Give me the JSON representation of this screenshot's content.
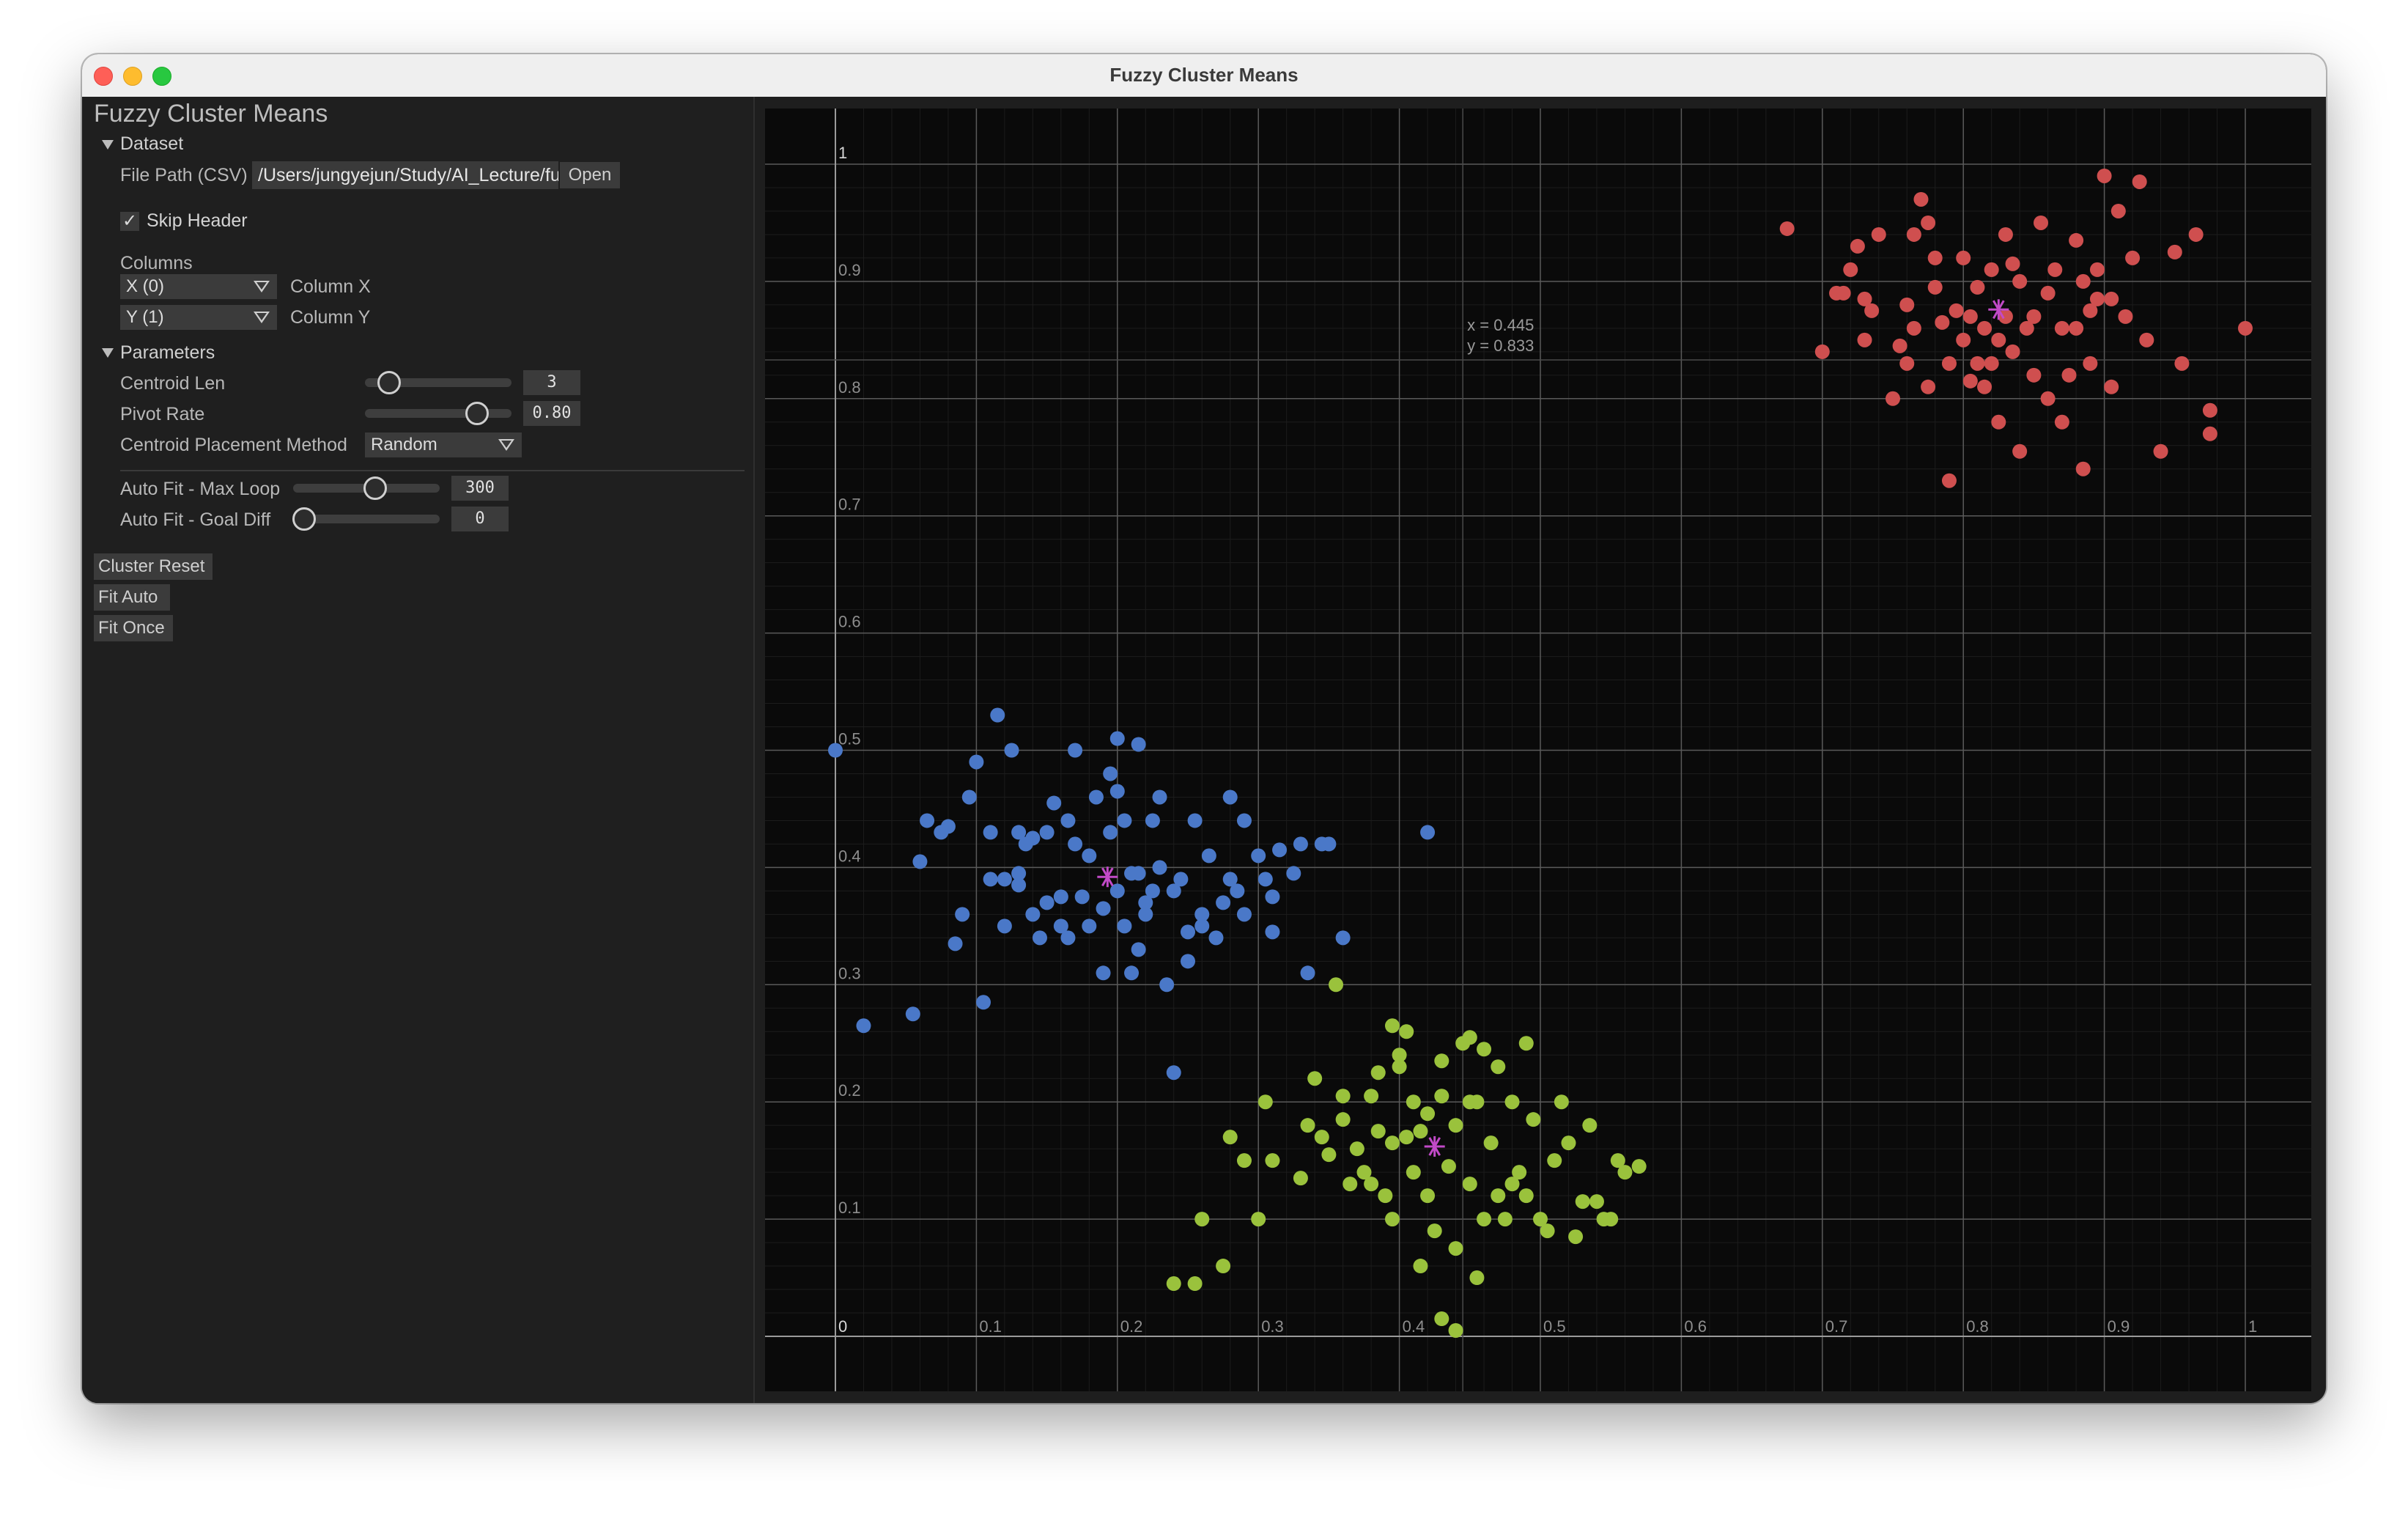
{
  "window": {
    "title": "Fuzzy Cluster Means"
  },
  "panel": {
    "title": "Fuzzy Cluster Means",
    "dataset": {
      "header": "Dataset",
      "file_label": "File Path (CSV)",
      "file_value": "/Users/jungyejun/Study/AI_Lecture/fuzzy-cluster-m",
      "open_label": "Open",
      "skip_header_label": "Skip Header",
      "skip_header_checked": "✓",
      "columns_label": "Columns",
      "col_x_value": "X (0)",
      "col_x_label": "Column X",
      "col_y_value": "Y (1)",
      "col_y_label": "Column Y"
    },
    "parameters": {
      "header": "Parameters",
      "centroid_len_label": "Centroid Len",
      "centroid_len_value": "3",
      "pivot_rate_label": "Pivot Rate",
      "pivot_rate_value": "0.80",
      "placement_label": "Centroid Placement Method",
      "placement_value": "Random",
      "max_loop_label": "Auto Fit - Max Loop",
      "max_loop_value": "300",
      "goal_diff_label": "Auto Fit - Goal Diff",
      "goal_diff_value": "0"
    },
    "buttons": {
      "cluster_reset": "Cluster Reset",
      "fit_auto": "Fit Auto",
      "fit_once": "Fit Once"
    }
  },
  "chart_data": {
    "type": "scatter",
    "xlim": [
      0,
      1
    ],
    "ylim": [
      0,
      1
    ],
    "x_ticks": [
      "0",
      "0.1",
      "0.2",
      "0.3",
      "0.4",
      "0.5",
      "0.6",
      "0.7",
      "0.8",
      "0.9",
      "1"
    ],
    "y_ticks": [
      "0.1",
      "0.2",
      "0.3",
      "0.4",
      "0.5",
      "0.6",
      "0.7",
      "0.8",
      "0.9",
      "1"
    ],
    "grid": true,
    "cursor_readout": {
      "x_text": "x = 0.445",
      "y_text": "y = 0.833"
    },
    "series": [
      {
        "color": "#cf4f4f",
        "centroid": [
          0.825,
          0.876
        ],
        "points": [
          [
            0.675,
            0.945
          ],
          [
            0.7,
            0.84
          ],
          [
            0.71,
            0.89
          ],
          [
            0.715,
            0.89
          ],
          [
            0.72,
            0.91
          ],
          [
            0.725,
            0.93
          ],
          [
            0.73,
            0.85
          ],
          [
            0.73,
            0.885
          ],
          [
            0.735,
            0.875
          ],
          [
            0.74,
            0.94
          ],
          [
            0.75,
            0.8
          ],
          [
            0.755,
            0.845
          ],
          [
            0.76,
            0.88
          ],
          [
            0.76,
            0.83
          ],
          [
            0.765,
            0.94
          ],
          [
            0.765,
            0.86
          ],
          [
            0.77,
            0.97
          ],
          [
            0.775,
            0.95
          ],
          [
            0.775,
            0.81
          ],
          [
            0.78,
            0.92
          ],
          [
            0.78,
            0.895
          ],
          [
            0.785,
            0.865
          ],
          [
            0.79,
            0.83
          ],
          [
            0.79,
            0.73
          ],
          [
            0.795,
            0.875
          ],
          [
            0.8,
            0.92
          ],
          [
            0.8,
            0.85
          ],
          [
            0.805,
            0.815
          ],
          [
            0.805,
            0.87
          ],
          [
            0.81,
            0.895
          ],
          [
            0.81,
            0.83
          ],
          [
            0.815,
            0.81
          ],
          [
            0.815,
            0.86
          ],
          [
            0.82,
            0.91
          ],
          [
            0.82,
            0.83
          ],
          [
            0.825,
            0.85
          ],
          [
            0.825,
            0.78
          ],
          [
            0.83,
            0.87
          ],
          [
            0.83,
            0.94
          ],
          [
            0.835,
            0.84
          ],
          [
            0.835,
            0.915
          ],
          [
            0.84,
            0.9
          ],
          [
            0.84,
            0.755
          ],
          [
            0.845,
            0.86
          ],
          [
            0.85,
            0.82
          ],
          [
            0.85,
            0.87
          ],
          [
            0.855,
            0.95
          ],
          [
            0.86,
            0.8
          ],
          [
            0.86,
            0.89
          ],
          [
            0.865,
            0.91
          ],
          [
            0.87,
            0.86
          ],
          [
            0.87,
            0.78
          ],
          [
            0.875,
            0.82
          ],
          [
            0.88,
            0.86
          ],
          [
            0.88,
            0.935
          ],
          [
            0.885,
            0.9
          ],
          [
            0.885,
            0.74
          ],
          [
            0.89,
            0.83
          ],
          [
            0.89,
            0.875
          ],
          [
            0.895,
            0.91
          ],
          [
            0.9,
            0.99
          ],
          [
            0.905,
            0.81
          ],
          [
            0.905,
            0.885
          ],
          [
            0.91,
            0.96
          ],
          [
            0.915,
            0.87
          ],
          [
            0.92,
            0.92
          ],
          [
            0.925,
            0.985
          ],
          [
            0.93,
            0.85
          ],
          [
            0.94,
            0.755
          ],
          [
            0.95,
            0.925
          ],
          [
            0.955,
            0.83
          ],
          [
            0.965,
            0.94
          ],
          [
            0.975,
            0.79
          ],
          [
            0.975,
            0.77
          ],
          [
            1.0,
            0.86
          ],
          [
            0.895,
            0.885
          ]
        ]
      },
      {
        "color": "#4a78c8",
        "centroid": [
          0.193,
          0.392
        ],
        "points": [
          [
            0.0,
            0.5
          ],
          [
            0.02,
            0.265
          ],
          [
            0.055,
            0.275
          ],
          [
            0.06,
            0.405
          ],
          [
            0.065,
            0.44
          ],
          [
            0.075,
            0.43
          ],
          [
            0.08,
            0.435
          ],
          [
            0.085,
            0.335
          ],
          [
            0.09,
            0.36
          ],
          [
            0.095,
            0.46
          ],
          [
            0.1,
            0.49
          ],
          [
            0.105,
            0.285
          ],
          [
            0.11,
            0.43
          ],
          [
            0.11,
            0.39
          ],
          [
            0.115,
            0.53
          ],
          [
            0.12,
            0.35
          ],
          [
            0.12,
            0.39
          ],
          [
            0.125,
            0.5
          ],
          [
            0.13,
            0.385
          ],
          [
            0.13,
            0.43
          ],
          [
            0.135,
            0.42
          ],
          [
            0.14,
            0.36
          ],
          [
            0.14,
            0.425
          ],
          [
            0.145,
            0.34
          ],
          [
            0.15,
            0.37
          ],
          [
            0.15,
            0.43
          ],
          [
            0.155,
            0.455
          ],
          [
            0.16,
            0.35
          ],
          [
            0.16,
            0.375
          ],
          [
            0.165,
            0.34
          ],
          [
            0.165,
            0.44
          ],
          [
            0.17,
            0.42
          ],
          [
            0.17,
            0.5
          ],
          [
            0.175,
            0.375
          ],
          [
            0.18,
            0.41
          ],
          [
            0.18,
            0.35
          ],
          [
            0.185,
            0.46
          ],
          [
            0.19,
            0.365
          ],
          [
            0.19,
            0.31
          ],
          [
            0.195,
            0.48
          ],
          [
            0.195,
            0.43
          ],
          [
            0.2,
            0.38
          ],
          [
            0.2,
            0.465
          ],
          [
            0.205,
            0.35
          ],
          [
            0.205,
            0.44
          ],
          [
            0.21,
            0.395
          ],
          [
            0.21,
            0.31
          ],
          [
            0.215,
            0.33
          ],
          [
            0.215,
            0.505
          ],
          [
            0.22,
            0.37
          ],
          [
            0.22,
            0.36
          ],
          [
            0.225,
            0.38
          ],
          [
            0.225,
            0.44
          ],
          [
            0.23,
            0.46
          ],
          [
            0.23,
            0.4
          ],
          [
            0.235,
            0.3
          ],
          [
            0.24,
            0.38
          ],
          [
            0.245,
            0.39
          ],
          [
            0.25,
            0.345
          ],
          [
            0.25,
            0.32
          ],
          [
            0.255,
            0.44
          ],
          [
            0.26,
            0.35
          ],
          [
            0.26,
            0.36
          ],
          [
            0.265,
            0.41
          ],
          [
            0.27,
            0.34
          ],
          [
            0.275,
            0.37
          ],
          [
            0.28,
            0.46
          ],
          [
            0.28,
            0.39
          ],
          [
            0.285,
            0.38
          ],
          [
            0.29,
            0.36
          ],
          [
            0.29,
            0.44
          ],
          [
            0.3,
            0.41
          ],
          [
            0.305,
            0.39
          ],
          [
            0.31,
            0.345
          ],
          [
            0.31,
            0.375
          ],
          [
            0.315,
            0.415
          ],
          [
            0.325,
            0.395
          ],
          [
            0.33,
            0.42
          ],
          [
            0.335,
            0.31
          ],
          [
            0.345,
            0.42
          ],
          [
            0.35,
            0.42
          ],
          [
            0.36,
            0.34
          ],
          [
            0.2,
            0.51
          ],
          [
            0.24,
            0.225
          ],
          [
            0.42,
            0.43
          ],
          [
            0.13,
            0.395
          ],
          [
            0.215,
            0.395
          ]
        ]
      },
      {
        "color": "#9ac23c",
        "centroid": [
          0.425,
          0.162
        ],
        "points": [
          [
            0.24,
            0.045
          ],
          [
            0.255,
            0.045
          ],
          [
            0.26,
            0.1
          ],
          [
            0.275,
            0.06
          ],
          [
            0.28,
            0.17
          ],
          [
            0.29,
            0.15
          ],
          [
            0.3,
            0.1
          ],
          [
            0.305,
            0.2
          ],
          [
            0.31,
            0.15
          ],
          [
            0.33,
            0.135
          ],
          [
            0.335,
            0.18
          ],
          [
            0.34,
            0.22
          ],
          [
            0.345,
            0.17
          ],
          [
            0.35,
            0.155
          ],
          [
            0.355,
            0.3
          ],
          [
            0.36,
            0.205
          ],
          [
            0.36,
            0.185
          ],
          [
            0.365,
            0.13
          ],
          [
            0.37,
            0.16
          ],
          [
            0.375,
            0.14
          ],
          [
            0.38,
            0.205
          ],
          [
            0.38,
            0.13
          ],
          [
            0.385,
            0.225
          ],
          [
            0.385,
            0.175
          ],
          [
            0.39,
            0.12
          ],
          [
            0.395,
            0.165
          ],
          [
            0.395,
            0.1
          ],
          [
            0.4,
            0.23
          ],
          [
            0.405,
            0.26
          ],
          [
            0.41,
            0.2
          ],
          [
            0.41,
            0.14
          ],
          [
            0.415,
            0.06
          ],
          [
            0.415,
            0.175
          ],
          [
            0.42,
            0.19
          ],
          [
            0.42,
            0.12
          ],
          [
            0.425,
            0.09
          ],
          [
            0.43,
            0.205
          ],
          [
            0.43,
            0.235
          ],
          [
            0.435,
            0.145
          ],
          [
            0.44,
            0.075
          ],
          [
            0.44,
            0.18
          ],
          [
            0.445,
            0.25
          ],
          [
            0.45,
            0.2
          ],
          [
            0.45,
            0.13
          ],
          [
            0.455,
            0.05
          ],
          [
            0.455,
            0.2
          ],
          [
            0.46,
            0.1
          ],
          [
            0.46,
            0.245
          ],
          [
            0.465,
            0.165
          ],
          [
            0.47,
            0.23
          ],
          [
            0.47,
            0.12
          ],
          [
            0.475,
            0.1
          ],
          [
            0.48,
            0.13
          ],
          [
            0.48,
            0.2
          ],
          [
            0.485,
            0.14
          ],
          [
            0.49,
            0.25
          ],
          [
            0.49,
            0.12
          ],
          [
            0.495,
            0.185
          ],
          [
            0.5,
            0.1
          ],
          [
            0.505,
            0.09
          ],
          [
            0.51,
            0.15
          ],
          [
            0.515,
            0.2
          ],
          [
            0.52,
            0.165
          ],
          [
            0.525,
            0.085
          ],
          [
            0.53,
            0.115
          ],
          [
            0.535,
            0.18
          ],
          [
            0.54,
            0.115
          ],
          [
            0.545,
            0.1
          ],
          [
            0.55,
            0.1
          ],
          [
            0.555,
            0.15
          ],
          [
            0.56,
            0.14
          ],
          [
            0.57,
            0.145
          ],
          [
            0.43,
            0.015
          ],
          [
            0.44,
            0.005
          ],
          [
            0.4,
            0.24
          ],
          [
            0.405,
            0.17
          ],
          [
            0.395,
            0.265
          ],
          [
            0.45,
            0.255
          ]
        ]
      }
    ]
  }
}
